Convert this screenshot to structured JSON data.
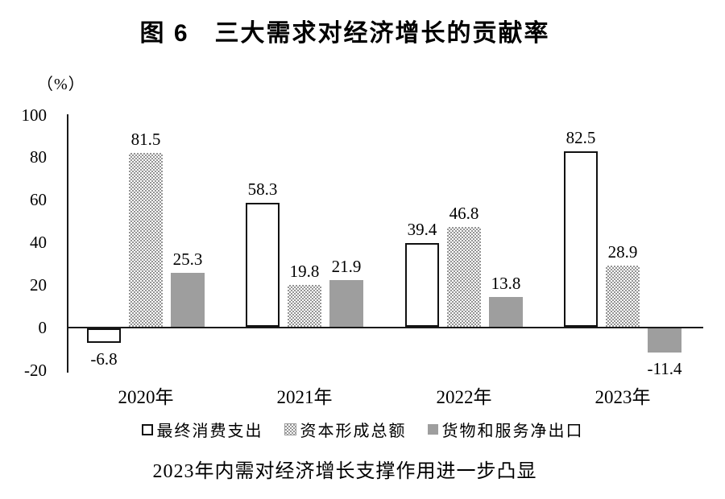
{
  "figure": {
    "title": "图 6　三大需求对经济增长的贡献率",
    "unit_label": "（%）",
    "caption": "2023年内需对经济增长支撑作用进一步凸显"
  },
  "chart_data": {
    "type": "bar",
    "title": "图 6　三大需求对经济增长的贡献率",
    "categories": [
      "2020年",
      "2021年",
      "2022年",
      "2023年"
    ],
    "series": [
      {
        "name": "最终消费支出",
        "style": "outline",
        "values": [
          -6.8,
          58.3,
          39.4,
          82.5
        ]
      },
      {
        "name": "资本形成总额",
        "style": "dotted",
        "values": [
          81.5,
          19.8,
          46.8,
          28.9
        ]
      },
      {
        "name": "货物和服务净出口",
        "style": "solid",
        "values": [
          25.3,
          21.9,
          13.8,
          -11.4
        ]
      }
    ],
    "ylabel": "（%）",
    "ylim": [
      -20,
      100
    ],
    "yticks": [
      100,
      80,
      60,
      40,
      20,
      0,
      -20
    ],
    "grid": false,
    "legend_position": "bottom",
    "data_labels": true
  },
  "colors": {
    "axis": "#1a1a1a",
    "solid_bar": "#9e9e9e",
    "dot_pattern": "#949494",
    "outline_bar_border": "#111111",
    "text": "#000000",
    "background": "#ffffff"
  }
}
